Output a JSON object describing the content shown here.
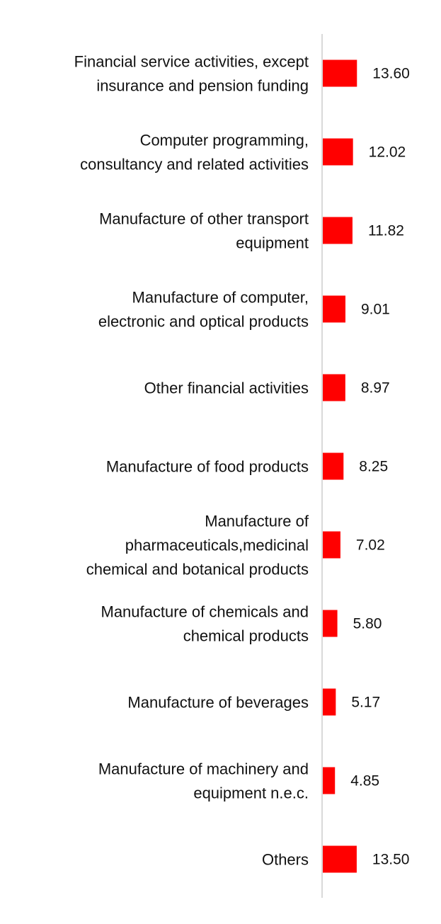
{
  "chart_data": {
    "type": "bar",
    "orientation": "horizontal",
    "title": "",
    "xlabel": "",
    "ylabel": "",
    "grid": false,
    "legend": "none",
    "bar_color": "#ff0000",
    "axis_color": "#d9d9d9",
    "categories": [
      [
        "Financial service activities, except",
        "insurance and pension funding"
      ],
      [
        "Computer programming,",
        "consultancy and related activities"
      ],
      [
        "Manufacture of other transport",
        "equipment"
      ],
      [
        "Manufacture of computer,",
        "electronic and optical products"
      ],
      [
        "Other financial activities"
      ],
      [
        "Manufacture of food products"
      ],
      [
        "Manufacture of",
        "pharmaceuticals,medicinal",
        "chemical and botanical products"
      ],
      [
        "Manufacture of chemicals and",
        "chemical products"
      ],
      [
        "Manufacture of beverages"
      ],
      [
        "Manufacture of machinery and",
        "equipment n.e.c."
      ],
      [
        "Others"
      ]
    ],
    "values": [
      13.6,
      12.02,
      11.82,
      9.01,
      8.97,
      8.25,
      7.02,
      5.8,
      5.17,
      4.85,
      13.5
    ],
    "value_labels": [
      "13.60",
      "12.02",
      "11.82",
      "9.01",
      "8.97",
      "8.25",
      "7.02",
      "5.80",
      "5.17",
      "4.85",
      "13.50"
    ]
  }
}
